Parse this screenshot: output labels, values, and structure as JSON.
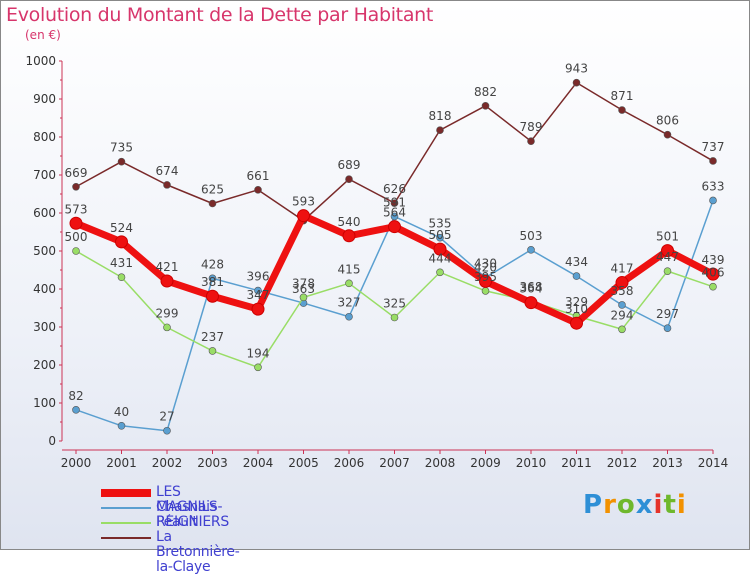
{
  "title": "Evolution du Montant de la Dette par Habitant",
  "subtitle": "(en €)",
  "logo": "Proxiti",
  "chart_data": {
    "type": "line",
    "x": [
      "2000",
      "2001",
      "2002",
      "2003",
      "2004",
      "2005",
      "2006",
      "2007",
      "2008",
      "2009",
      "2010",
      "2011",
      "2012",
      "2013",
      "2014"
    ],
    "ylim": [
      0,
      1000
    ],
    "yticks": [
      0,
      100,
      200,
      300,
      400,
      500,
      600,
      700,
      800,
      900,
      1000
    ],
    "grid": false,
    "legend_position": "bottom-left",
    "series": [
      {
        "name": "LES MAGNILS-REIGNIERS",
        "color": "#ee1111",
        "values": [
          573,
          524,
          421,
          381,
          347,
          593,
          540,
          564,
          505,
          420,
          364,
          310,
          417,
          501,
          439
        ]
      },
      {
        "name": "Chasnais",
        "color": "#5a9fd0",
        "values": [
          82,
          40,
          27,
          428,
          396,
          363,
          327,
          591,
          535,
          430,
          503,
          434,
          358,
          297,
          633
        ]
      },
      {
        "name": "Péault",
        "color": "#99dd66",
        "values": [
          500,
          431,
          299,
          237,
          194,
          378,
          415,
          325,
          444,
          395,
          368,
          329,
          294,
          447,
          406
        ]
      },
      {
        "name": "La Bretonnière-la-Claye",
        "color": "#7a2a2a",
        "values": [
          669,
          735,
          674,
          625,
          661,
          580,
          689,
          626,
          818,
          882,
          789,
          943,
          871,
          806,
          737
        ]
      }
    ],
    "point_labels": {
      "LES MAGNILS-REIGNIERS": [
        "573",
        "524",
        "421",
        "381",
        "347",
        "593",
        "540",
        "564",
        "505",
        "420",
        "364",
        "310",
        "417",
        "501",
        "439"
      ],
      "Chasnais": [
        "82",
        "40",
        "27",
        "428",
        "396",
        "363",
        "327",
        "591",
        "535",
        "430",
        "503",
        "434",
        "358",
        "297",
        "633"
      ],
      "Péault": [
        "500",
        "431",
        "299",
        "237",
        "194",
        "378",
        "415",
        "325",
        "444",
        "395",
        "368",
        "329",
        "294",
        "447",
        "406"
      ],
      "La Bretonnière-la-Claye": [
        "669",
        "735",
        "674",
        "625",
        "661",
        "",
        "689",
        "626",
        "818",
        "882",
        "789",
        "943",
        "871",
        "806",
        "737"
      ]
    }
  }
}
